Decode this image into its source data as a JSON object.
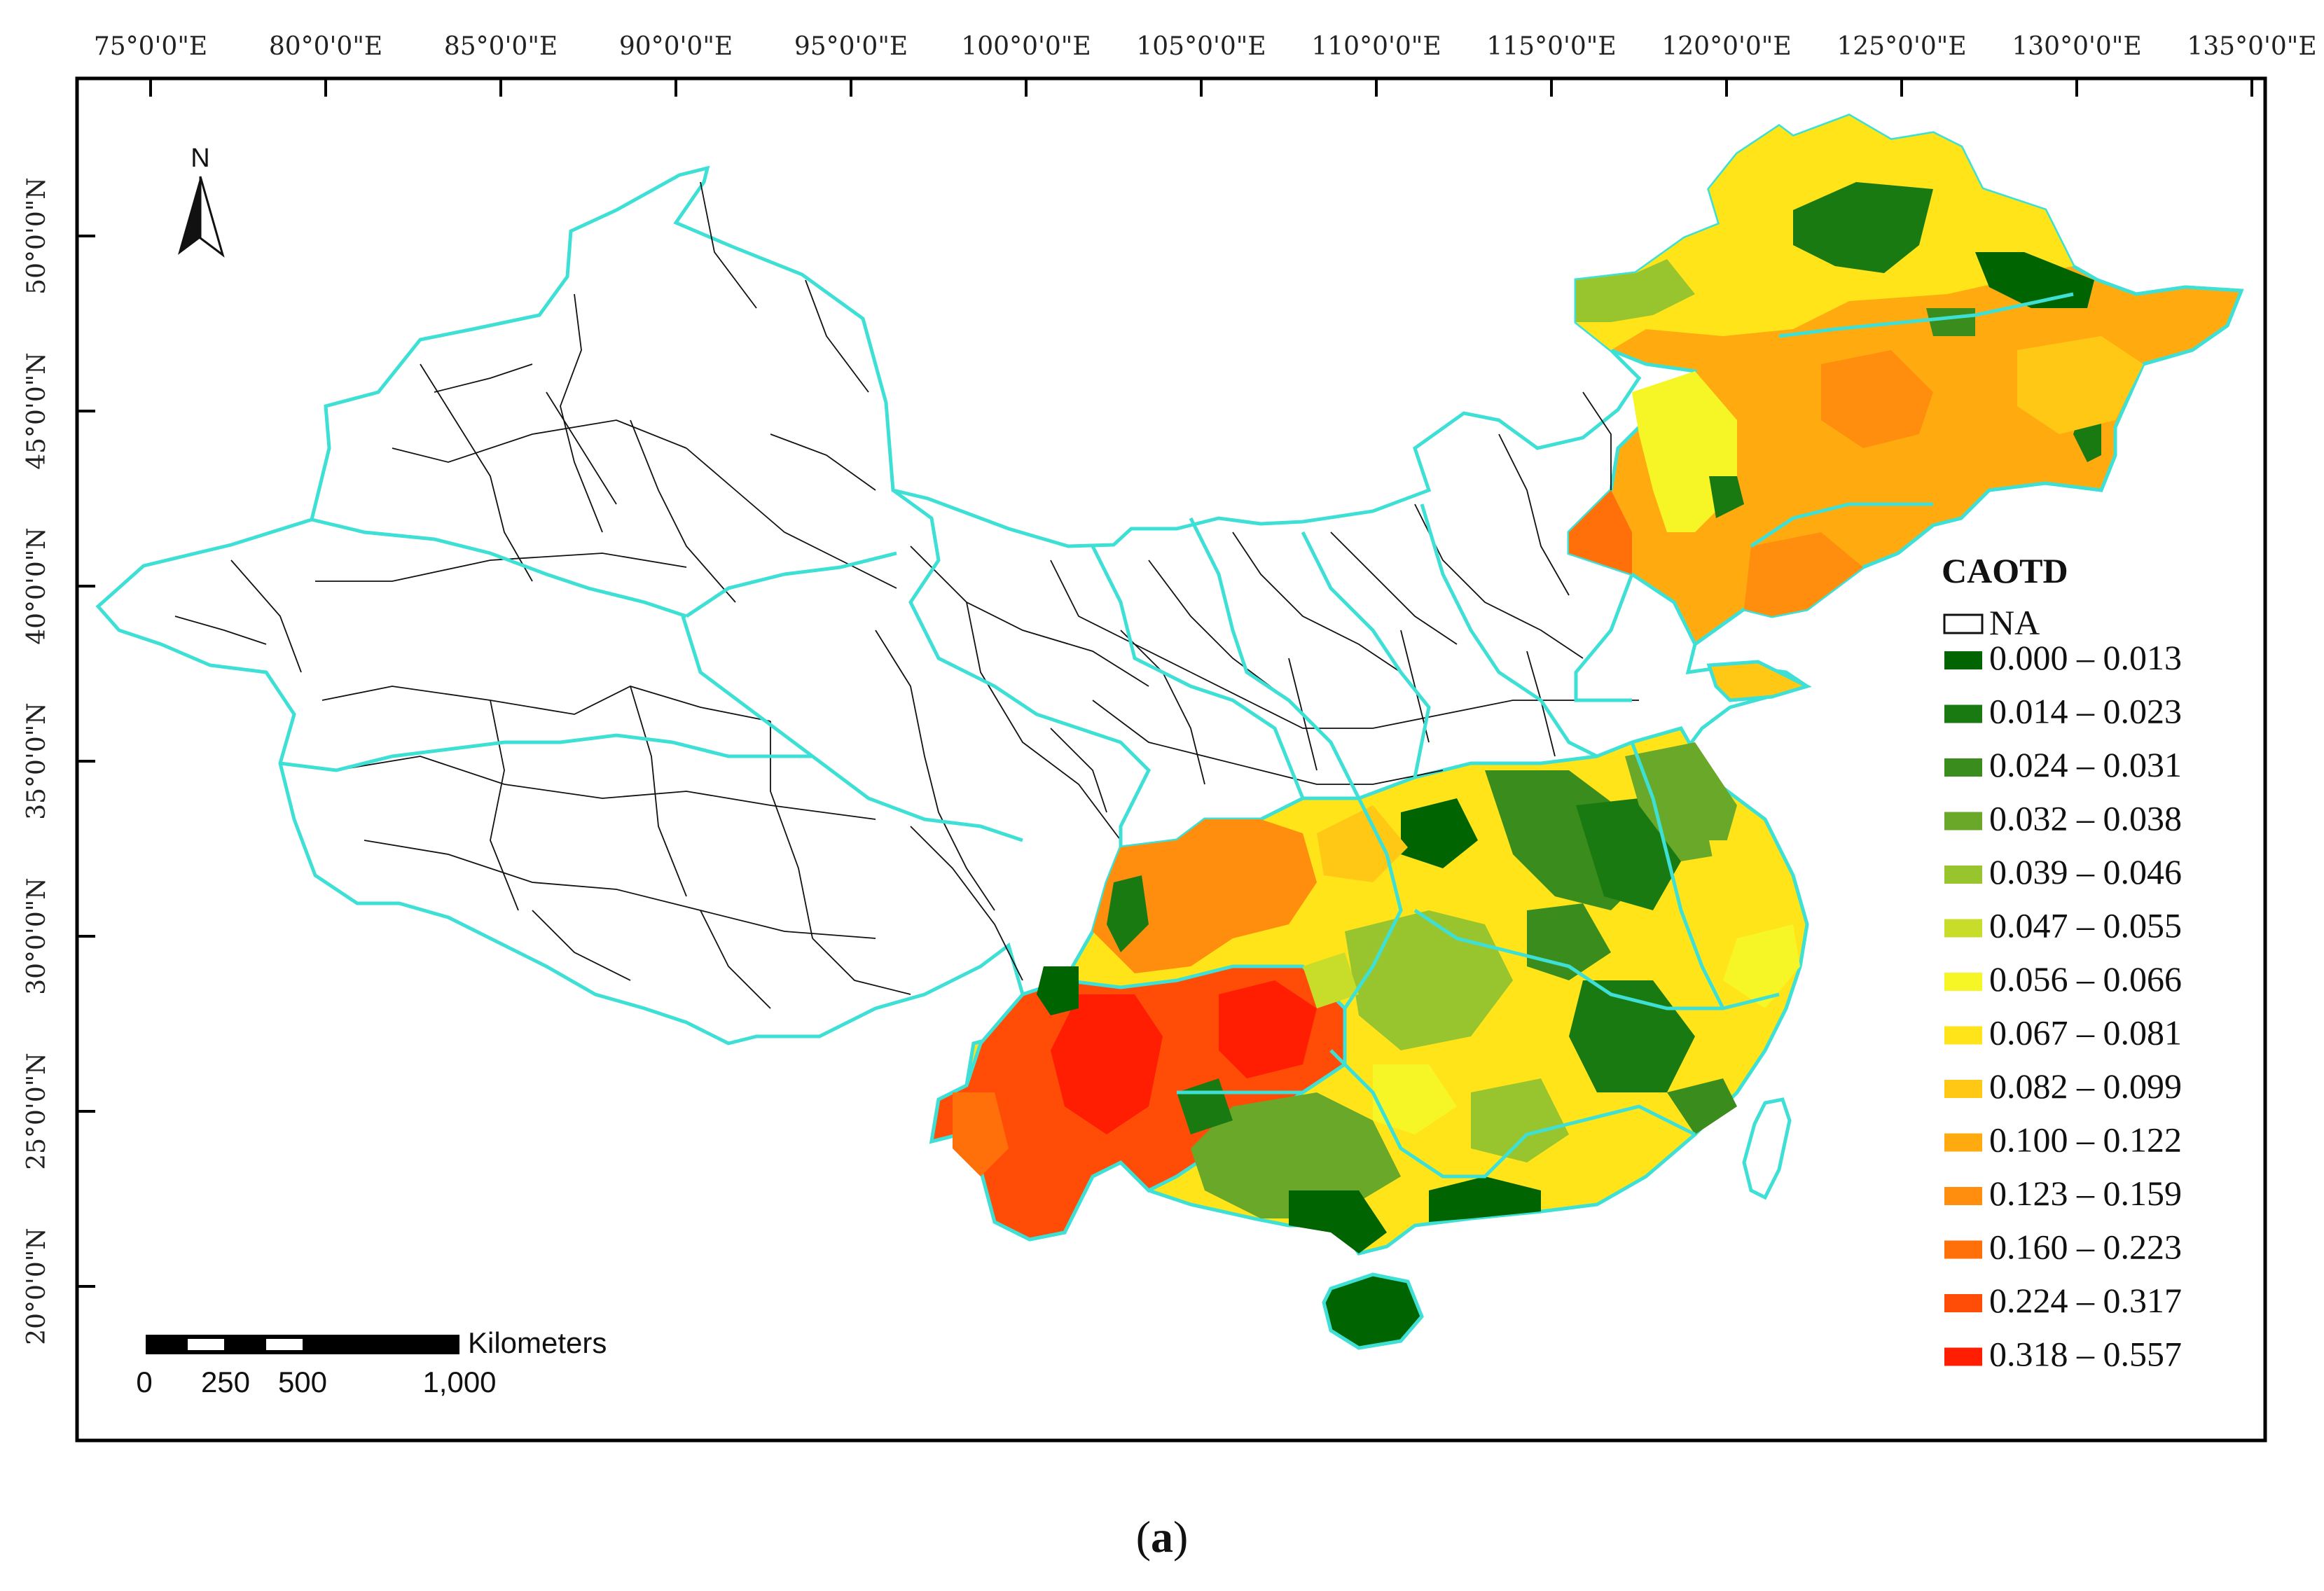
{
  "map": {
    "longitude_labels": [
      "75°0'0\"E",
      "80°0'0\"E",
      "85°0'0\"E",
      "90°0'0\"E",
      "95°0'0\"E",
      "100°0'0\"E",
      "105°0'0\"E",
      "110°0'0\"E",
      "115°0'0\"E",
      "120°0'0\"E",
      "125°0'0\"E",
      "130°0'0\"E",
      "135°0'0\"E"
    ],
    "latitude_labels": [
      "50°0'0\"N",
      "45°0'0\"N",
      "40°0'0\"N",
      "35°0'0\"N",
      "30°0'0\"N",
      "25°0'0\"N",
      "20°0'0\"N"
    ],
    "north_label": "N",
    "boundary_color": "#3ee0d6",
    "na_color": "#ffffff"
  },
  "legend": {
    "title": "CAOTD",
    "na_label": "NA",
    "classes": [
      {
        "label": "0.000 – 0.013",
        "color": "#006400"
      },
      {
        "label": "0.014 – 0.023",
        "color": "#1a7a12"
      },
      {
        "label": "0.024 – 0.031",
        "color": "#3a8c1c"
      },
      {
        "label": "0.032 – 0.038",
        "color": "#6aa829"
      },
      {
        "label": "0.039 – 0.046",
        "color": "#98c42e"
      },
      {
        "label": "0.047 – 0.055",
        "color": "#c8dc2a"
      },
      {
        "label": "0.056 – 0.066",
        "color": "#f6f526"
      },
      {
        "label": "0.067 – 0.081",
        "color": "#ffe41a"
      },
      {
        "label": "0.082 – 0.099",
        "color": "#ffc814"
      },
      {
        "label": "0.100 – 0.122",
        "color": "#ffab10"
      },
      {
        "label": "0.123 – 0.159",
        "color": "#ff8e0e"
      },
      {
        "label": "0.160 – 0.223",
        "color": "#ff6f0a"
      },
      {
        "label": "0.224 – 0.317",
        "color": "#ff4c06"
      },
      {
        "label": "0.318 – 0.557",
        "color": "#ff1e02"
      }
    ]
  },
  "scale_bar": {
    "unit": "Kilometers",
    "ticks": [
      "0",
      "250",
      "500",
      "1,000"
    ]
  },
  "caption": {
    "open": "(",
    "letter": "a",
    "close": ")"
  }
}
